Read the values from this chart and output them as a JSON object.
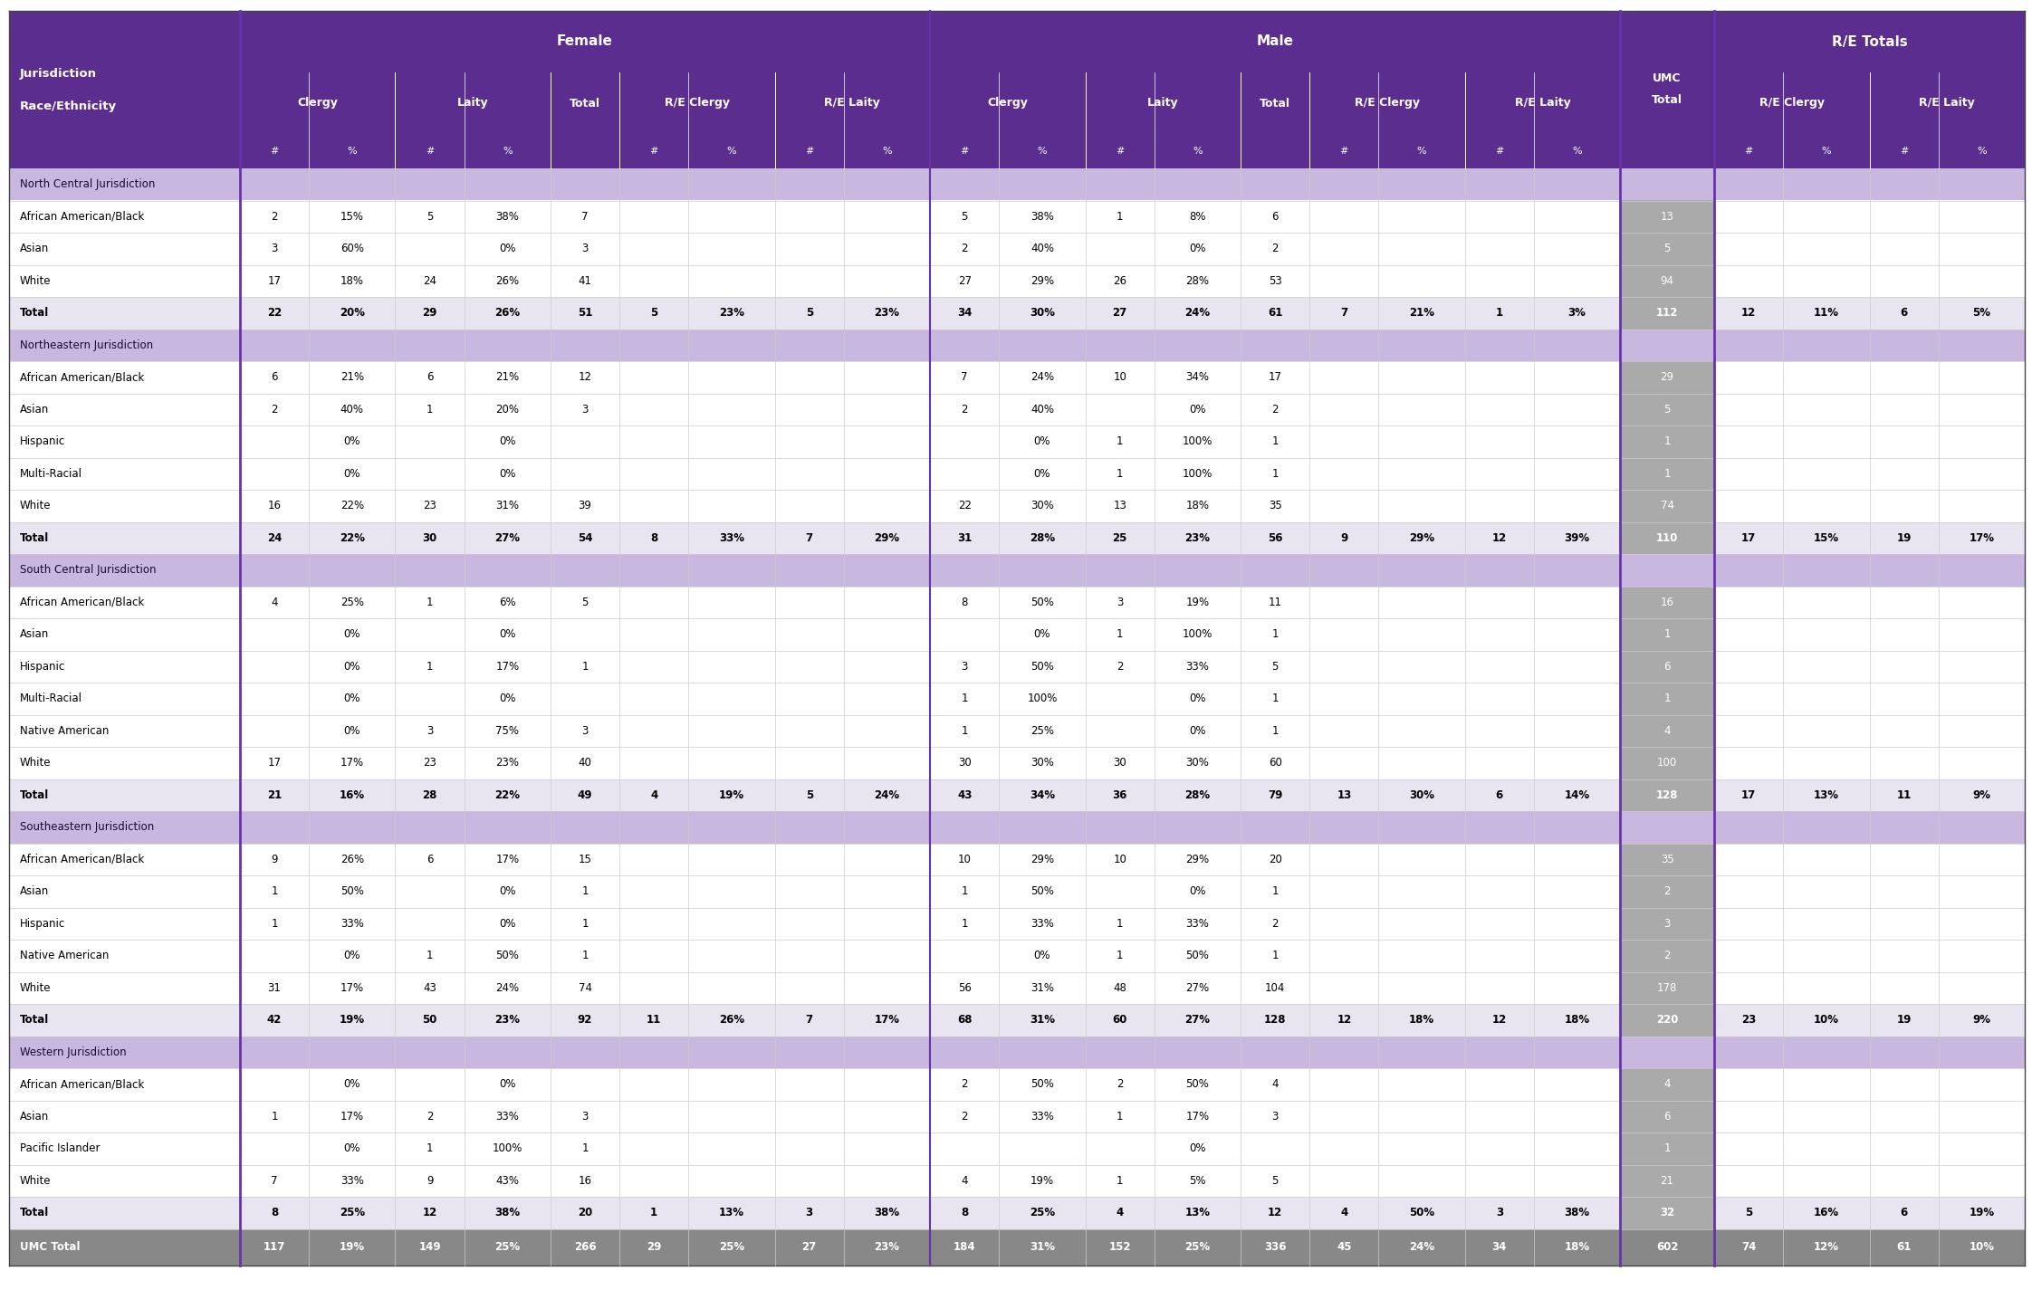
{
  "header_bg": "#5b2d8e",
  "header_text": "#ffffff",
  "jurisdiction_bg": "#c8b8e0",
  "total_bg": "#e8e4f0",
  "umc_total_bg": "#888888",
  "umc_total_text": "#ffffff",
  "umc_col_bg": "#aaaaaa",
  "umc_col_text": "#ffffff",
  "white_bg": "#ffffff",
  "row_line_color": "#cccccc",
  "col_separator_color": "#6633aa",
  "rows": [
    {
      "type": "jurisdiction",
      "label": "North Central Jurisdiction"
    },
    {
      "type": "data",
      "label": "African American/Black",
      "f_cl_n": "2",
      "f_cl_p": "15%",
      "f_la_n": "5",
      "f_la_p": "38%",
      "f_tot": "7",
      "f_re_cl_n": "",
      "f_re_cl_p": "",
      "f_re_la_n": "",
      "f_re_la_p": "",
      "m_cl_n": "5",
      "m_cl_p": "38%",
      "m_la_n": "1",
      "m_la_p": "8%",
      "m_tot": "6",
      "m_re_cl_n": "",
      "m_re_cl_p": "",
      "m_re_la_n": "",
      "m_re_la_p": "",
      "umc_tot": "13",
      "re_cl_n": "",
      "re_cl_p": "",
      "re_la_n": "",
      "re_la_p": ""
    },
    {
      "type": "data",
      "label": "Asian",
      "f_cl_n": "3",
      "f_cl_p": "60%",
      "f_la_n": "",
      "f_la_p": "0%",
      "f_tot": "3",
      "f_re_cl_n": "",
      "f_re_cl_p": "",
      "f_re_la_n": "",
      "f_re_la_p": "",
      "m_cl_n": "2",
      "m_cl_p": "40%",
      "m_la_n": "",
      "m_la_p": "0%",
      "m_tot": "2",
      "m_re_cl_n": "",
      "m_re_cl_p": "",
      "m_re_la_n": "",
      "m_re_la_p": "",
      "umc_tot": "5",
      "re_cl_n": "",
      "re_cl_p": "",
      "re_la_n": "",
      "re_la_p": ""
    },
    {
      "type": "data",
      "label": "White",
      "f_cl_n": "17",
      "f_cl_p": "18%",
      "f_la_n": "24",
      "f_la_p": "26%",
      "f_tot": "41",
      "f_re_cl_n": "",
      "f_re_cl_p": "",
      "f_re_la_n": "",
      "f_re_la_p": "",
      "m_cl_n": "27",
      "m_cl_p": "29%",
      "m_la_n": "26",
      "m_la_p": "28%",
      "m_tot": "53",
      "m_re_cl_n": "",
      "m_re_cl_p": "",
      "m_re_la_n": "",
      "m_re_la_p": "",
      "umc_tot": "94",
      "re_cl_n": "",
      "re_cl_p": "",
      "re_la_n": "",
      "re_la_p": ""
    },
    {
      "type": "total",
      "label": "Total",
      "f_cl_n": "22",
      "f_cl_p": "20%",
      "f_la_n": "29",
      "f_la_p": "26%",
      "f_tot": "51",
      "f_re_cl_n": "5",
      "f_re_cl_p": "23%",
      "f_re_la_n": "5",
      "f_re_la_p": "23%",
      "m_cl_n": "34",
      "m_cl_p": "30%",
      "m_la_n": "27",
      "m_la_p": "24%",
      "m_tot": "61",
      "m_re_cl_n": "7",
      "m_re_cl_p": "21%",
      "m_re_la_n": "1",
      "m_re_la_p": "3%",
      "umc_tot": "112",
      "re_cl_n": "12",
      "re_cl_p": "11%",
      "re_la_n": "6",
      "re_la_p": "5%"
    },
    {
      "type": "jurisdiction",
      "label": "Northeastern Jurisdiction"
    },
    {
      "type": "data",
      "label": "African American/Black",
      "f_cl_n": "6",
      "f_cl_p": "21%",
      "f_la_n": "6",
      "f_la_p": "21%",
      "f_tot": "12",
      "f_re_cl_n": "",
      "f_re_cl_p": "",
      "f_re_la_n": "",
      "f_re_la_p": "",
      "m_cl_n": "7",
      "m_cl_p": "24%",
      "m_la_n": "10",
      "m_la_p": "34%",
      "m_tot": "17",
      "m_re_cl_n": "",
      "m_re_cl_p": "",
      "m_re_la_n": "",
      "m_re_la_p": "",
      "umc_tot": "29",
      "re_cl_n": "",
      "re_cl_p": "",
      "re_la_n": "",
      "re_la_p": ""
    },
    {
      "type": "data",
      "label": "Asian",
      "f_cl_n": "2",
      "f_cl_p": "40%",
      "f_la_n": "1",
      "f_la_p": "20%",
      "f_tot": "3",
      "f_re_cl_n": "",
      "f_re_cl_p": "",
      "f_re_la_n": "",
      "f_re_la_p": "",
      "m_cl_n": "2",
      "m_cl_p": "40%",
      "m_la_n": "",
      "m_la_p": "0%",
      "m_tot": "2",
      "m_re_cl_n": "",
      "m_re_cl_p": "",
      "m_re_la_n": "",
      "m_re_la_p": "",
      "umc_tot": "5",
      "re_cl_n": "",
      "re_cl_p": "",
      "re_la_n": "",
      "re_la_p": ""
    },
    {
      "type": "data",
      "label": "Hispanic",
      "f_cl_n": "",
      "f_cl_p": "0%",
      "f_la_n": "",
      "f_la_p": "0%",
      "f_tot": "",
      "f_re_cl_n": "",
      "f_re_cl_p": "",
      "f_re_la_n": "",
      "f_re_la_p": "",
      "m_cl_n": "",
      "m_cl_p": "0%",
      "m_la_n": "1",
      "m_la_p": "100%",
      "m_tot": "1",
      "m_re_cl_n": "",
      "m_re_cl_p": "",
      "m_re_la_n": "",
      "m_re_la_p": "",
      "umc_tot": "1",
      "re_cl_n": "",
      "re_cl_p": "",
      "re_la_n": "",
      "re_la_p": ""
    },
    {
      "type": "data",
      "label": "Multi-Racial",
      "f_cl_n": "",
      "f_cl_p": "0%",
      "f_la_n": "",
      "f_la_p": "0%",
      "f_tot": "",
      "f_re_cl_n": "",
      "f_re_cl_p": "",
      "f_re_la_n": "",
      "f_re_la_p": "",
      "m_cl_n": "",
      "m_cl_p": "0%",
      "m_la_n": "1",
      "m_la_p": "100%",
      "m_tot": "1",
      "m_re_cl_n": "",
      "m_re_cl_p": "",
      "m_re_la_n": "",
      "m_re_la_p": "",
      "umc_tot": "1",
      "re_cl_n": "",
      "re_cl_p": "",
      "re_la_n": "",
      "re_la_p": ""
    },
    {
      "type": "data",
      "label": "White",
      "f_cl_n": "16",
      "f_cl_p": "22%",
      "f_la_n": "23",
      "f_la_p": "31%",
      "f_tot": "39",
      "f_re_cl_n": "",
      "f_re_cl_p": "",
      "f_re_la_n": "",
      "f_re_la_p": "",
      "m_cl_n": "22",
      "m_cl_p": "30%",
      "m_la_n": "13",
      "m_la_p": "18%",
      "m_tot": "35",
      "m_re_cl_n": "",
      "m_re_cl_p": "",
      "m_re_la_n": "",
      "m_re_la_p": "",
      "umc_tot": "74",
      "re_cl_n": "",
      "re_cl_p": "",
      "re_la_n": "",
      "re_la_p": ""
    },
    {
      "type": "total",
      "label": "Total",
      "f_cl_n": "24",
      "f_cl_p": "22%",
      "f_la_n": "30",
      "f_la_p": "27%",
      "f_tot": "54",
      "f_re_cl_n": "8",
      "f_re_cl_p": "33%",
      "f_re_la_n": "7",
      "f_re_la_p": "29%",
      "m_cl_n": "31",
      "m_cl_p": "28%",
      "m_la_n": "25",
      "m_la_p": "23%",
      "m_tot": "56",
      "m_re_cl_n": "9",
      "m_re_cl_p": "29%",
      "m_re_la_n": "12",
      "m_re_la_p": "39%",
      "umc_tot": "110",
      "re_cl_n": "17",
      "re_cl_p": "15%",
      "re_la_n": "19",
      "re_la_p": "17%"
    },
    {
      "type": "jurisdiction",
      "label": "South Central Jurisdiction"
    },
    {
      "type": "data",
      "label": "African American/Black",
      "f_cl_n": "4",
      "f_cl_p": "25%",
      "f_la_n": "1",
      "f_la_p": "6%",
      "f_tot": "5",
      "f_re_cl_n": "",
      "f_re_cl_p": "",
      "f_re_la_n": "",
      "f_re_la_p": "",
      "m_cl_n": "8",
      "m_cl_p": "50%",
      "m_la_n": "3",
      "m_la_p": "19%",
      "m_tot": "11",
      "m_re_cl_n": "",
      "m_re_cl_p": "",
      "m_re_la_n": "",
      "m_re_la_p": "",
      "umc_tot": "16",
      "re_cl_n": "",
      "re_cl_p": "",
      "re_la_n": "",
      "re_la_p": ""
    },
    {
      "type": "data",
      "label": "Asian",
      "f_cl_n": "",
      "f_cl_p": "0%",
      "f_la_n": "",
      "f_la_p": "0%",
      "f_tot": "",
      "f_re_cl_n": "",
      "f_re_cl_p": "",
      "f_re_la_n": "",
      "f_re_la_p": "",
      "m_cl_n": "",
      "m_cl_p": "0%",
      "m_la_n": "1",
      "m_la_p": "100%",
      "m_tot": "1",
      "m_re_cl_n": "",
      "m_re_cl_p": "",
      "m_re_la_n": "",
      "m_re_la_p": "",
      "umc_tot": "1",
      "re_cl_n": "",
      "re_cl_p": "",
      "re_la_n": "",
      "re_la_p": ""
    },
    {
      "type": "data",
      "label": "Hispanic",
      "f_cl_n": "",
      "f_cl_p": "0%",
      "f_la_n": "1",
      "f_la_p": "17%",
      "f_tot": "1",
      "f_re_cl_n": "",
      "f_re_cl_p": "",
      "f_re_la_n": "",
      "f_re_la_p": "",
      "m_cl_n": "3",
      "m_cl_p": "50%",
      "m_la_n": "2",
      "m_la_p": "33%",
      "m_tot": "5",
      "m_re_cl_n": "",
      "m_re_cl_p": "",
      "m_re_la_n": "",
      "m_re_la_p": "",
      "umc_tot": "6",
      "re_cl_n": "",
      "re_cl_p": "",
      "re_la_n": "",
      "re_la_p": ""
    },
    {
      "type": "data",
      "label": "Multi-Racial",
      "f_cl_n": "",
      "f_cl_p": "0%",
      "f_la_n": "",
      "f_la_p": "0%",
      "f_tot": "",
      "f_re_cl_n": "",
      "f_re_cl_p": "",
      "f_re_la_n": "",
      "f_re_la_p": "",
      "m_cl_n": "1",
      "m_cl_p": "100%",
      "m_la_n": "",
      "m_la_p": "0%",
      "m_tot": "1",
      "m_re_cl_n": "",
      "m_re_cl_p": "",
      "m_re_la_n": "",
      "m_re_la_p": "",
      "umc_tot": "1",
      "re_cl_n": "",
      "re_cl_p": "",
      "re_la_n": "",
      "re_la_p": ""
    },
    {
      "type": "data",
      "label": "Native American",
      "f_cl_n": "",
      "f_cl_p": "0%",
      "f_la_n": "3",
      "f_la_p": "75%",
      "f_tot": "3",
      "f_re_cl_n": "",
      "f_re_cl_p": "",
      "f_re_la_n": "",
      "f_re_la_p": "",
      "m_cl_n": "1",
      "m_cl_p": "25%",
      "m_la_n": "",
      "m_la_p": "0%",
      "m_tot": "1",
      "m_re_cl_n": "",
      "m_re_cl_p": "",
      "m_re_la_n": "",
      "m_re_la_p": "",
      "umc_tot": "4",
      "re_cl_n": "",
      "re_cl_p": "",
      "re_la_n": "",
      "re_la_p": ""
    },
    {
      "type": "data",
      "label": "White",
      "f_cl_n": "17",
      "f_cl_p": "17%",
      "f_la_n": "23",
      "f_la_p": "23%",
      "f_tot": "40",
      "f_re_cl_n": "",
      "f_re_cl_p": "",
      "f_re_la_n": "",
      "f_re_la_p": "",
      "m_cl_n": "30",
      "m_cl_p": "30%",
      "m_la_n": "30",
      "m_la_p": "30%",
      "m_tot": "60",
      "m_re_cl_n": "",
      "m_re_cl_p": "",
      "m_re_la_n": "",
      "m_re_la_p": "",
      "umc_tot": "100",
      "re_cl_n": "",
      "re_cl_p": "",
      "re_la_n": "",
      "re_la_p": ""
    },
    {
      "type": "total",
      "label": "Total",
      "f_cl_n": "21",
      "f_cl_p": "16%",
      "f_la_n": "28",
      "f_la_p": "22%",
      "f_tot": "49",
      "f_re_cl_n": "4",
      "f_re_cl_p": "19%",
      "f_re_la_n": "5",
      "f_re_la_p": "24%",
      "m_cl_n": "43",
      "m_cl_p": "34%",
      "m_la_n": "36",
      "m_la_p": "28%",
      "m_tot": "79",
      "m_re_cl_n": "13",
      "m_re_cl_p": "30%",
      "m_re_la_n": "6",
      "m_re_la_p": "14%",
      "umc_tot": "128",
      "re_cl_n": "17",
      "re_cl_p": "13%",
      "re_la_n": "11",
      "re_la_p": "9%"
    },
    {
      "type": "jurisdiction",
      "label": "Southeastern Jurisdiction"
    },
    {
      "type": "data",
      "label": "African American/Black",
      "f_cl_n": "9",
      "f_cl_p": "26%",
      "f_la_n": "6",
      "f_la_p": "17%",
      "f_tot": "15",
      "f_re_cl_n": "",
      "f_re_cl_p": "",
      "f_re_la_n": "",
      "f_re_la_p": "",
      "m_cl_n": "10",
      "m_cl_p": "29%",
      "m_la_n": "10",
      "m_la_p": "29%",
      "m_tot": "20",
      "m_re_cl_n": "",
      "m_re_cl_p": "",
      "m_re_la_n": "",
      "m_re_la_p": "",
      "umc_tot": "35",
      "re_cl_n": "",
      "re_cl_p": "",
      "re_la_n": "",
      "re_la_p": ""
    },
    {
      "type": "data",
      "label": "Asian",
      "f_cl_n": "1",
      "f_cl_p": "50%",
      "f_la_n": "",
      "f_la_p": "0%",
      "f_tot": "1",
      "f_re_cl_n": "",
      "f_re_cl_p": "",
      "f_re_la_n": "",
      "f_re_la_p": "",
      "m_cl_n": "1",
      "m_cl_p": "50%",
      "m_la_n": "",
      "m_la_p": "0%",
      "m_tot": "1",
      "m_re_cl_n": "",
      "m_re_cl_p": "",
      "m_re_la_n": "",
      "m_re_la_p": "",
      "umc_tot": "2",
      "re_cl_n": "",
      "re_cl_p": "",
      "re_la_n": "",
      "re_la_p": ""
    },
    {
      "type": "data",
      "label": "Hispanic",
      "f_cl_n": "1",
      "f_cl_p": "33%",
      "f_la_n": "",
      "f_la_p": "0%",
      "f_tot": "1",
      "f_re_cl_n": "",
      "f_re_cl_p": "",
      "f_re_la_n": "",
      "f_re_la_p": "",
      "m_cl_n": "1",
      "m_cl_p": "33%",
      "m_la_n": "1",
      "m_la_p": "33%",
      "m_tot": "2",
      "m_re_cl_n": "",
      "m_re_cl_p": "",
      "m_re_la_n": "",
      "m_re_la_p": "",
      "umc_tot": "3",
      "re_cl_n": "",
      "re_cl_p": "",
      "re_la_n": "",
      "re_la_p": ""
    },
    {
      "type": "data",
      "label": "Native American",
      "f_cl_n": "",
      "f_cl_p": "0%",
      "f_la_n": "1",
      "f_la_p": "50%",
      "f_tot": "1",
      "f_re_cl_n": "",
      "f_re_cl_p": "",
      "f_re_la_n": "",
      "f_re_la_p": "",
      "m_cl_n": "",
      "m_cl_p": "0%",
      "m_la_n": "1",
      "m_la_p": "50%",
      "m_tot": "1",
      "m_re_cl_n": "",
      "m_re_cl_p": "",
      "m_re_la_n": "",
      "m_re_la_p": "",
      "umc_tot": "2",
      "re_cl_n": "",
      "re_cl_p": "",
      "re_la_n": "",
      "re_la_p": ""
    },
    {
      "type": "data",
      "label": "White",
      "f_cl_n": "31",
      "f_cl_p": "17%",
      "f_la_n": "43",
      "f_la_p": "24%",
      "f_tot": "74",
      "f_re_cl_n": "",
      "f_re_cl_p": "",
      "f_re_la_n": "",
      "f_re_la_p": "",
      "m_cl_n": "56",
      "m_cl_p": "31%",
      "m_la_n": "48",
      "m_la_p": "27%",
      "m_tot": "104",
      "m_re_cl_n": "",
      "m_re_cl_p": "",
      "m_re_la_n": "",
      "m_re_la_p": "",
      "umc_tot": "178",
      "re_cl_n": "",
      "re_cl_p": "",
      "re_la_n": "",
      "re_la_p": ""
    },
    {
      "type": "total",
      "label": "Total",
      "f_cl_n": "42",
      "f_cl_p": "19%",
      "f_la_n": "50",
      "f_la_p": "23%",
      "f_tot": "92",
      "f_re_cl_n": "11",
      "f_re_cl_p": "26%",
      "f_re_la_n": "7",
      "f_re_la_p": "17%",
      "m_cl_n": "68",
      "m_cl_p": "31%",
      "m_la_n": "60",
      "m_la_p": "27%",
      "m_tot": "128",
      "m_re_cl_n": "12",
      "m_re_cl_p": "18%",
      "m_re_la_n": "12",
      "m_re_la_p": "18%",
      "umc_tot": "220",
      "re_cl_n": "23",
      "re_cl_p": "10%",
      "re_la_n": "19",
      "re_la_p": "9%"
    },
    {
      "type": "jurisdiction",
      "label": "Western Jurisdiction"
    },
    {
      "type": "data",
      "label": "African American/Black",
      "f_cl_n": "",
      "f_cl_p": "0%",
      "f_la_n": "",
      "f_la_p": "0%",
      "f_tot": "",
      "f_re_cl_n": "",
      "f_re_cl_p": "",
      "f_re_la_n": "",
      "f_re_la_p": "",
      "m_cl_n": "2",
      "m_cl_p": "50%",
      "m_la_n": "2",
      "m_la_p": "50%",
      "m_tot": "4",
      "m_re_cl_n": "",
      "m_re_cl_p": "",
      "m_re_la_n": "",
      "m_re_la_p": "",
      "umc_tot": "4",
      "re_cl_n": "",
      "re_cl_p": "",
      "re_la_n": "",
      "re_la_p": ""
    },
    {
      "type": "data",
      "label": "Asian",
      "f_cl_n": "1",
      "f_cl_p": "17%",
      "f_la_n": "2",
      "f_la_p": "33%",
      "f_tot": "3",
      "f_re_cl_n": "",
      "f_re_cl_p": "",
      "f_re_la_n": "",
      "f_re_la_p": "",
      "m_cl_n": "2",
      "m_cl_p": "33%",
      "m_la_n": "1",
      "m_la_p": "17%",
      "m_tot": "3",
      "m_re_cl_n": "",
      "m_re_cl_p": "",
      "m_re_la_n": "",
      "m_re_la_p": "",
      "umc_tot": "6",
      "re_cl_n": "",
      "re_cl_p": "",
      "re_la_n": "",
      "re_la_p": ""
    },
    {
      "type": "data",
      "label": "Pacific Islander",
      "f_cl_n": "",
      "f_cl_p": "0%",
      "f_la_n": "1",
      "f_la_p": "100%",
      "f_tot": "1",
      "f_re_cl_n": "",
      "f_re_cl_p": "",
      "f_re_la_n": "",
      "f_re_la_p": "",
      "m_cl_n": "",
      "m_cl_p": "",
      "m_la_n": "",
      "m_la_p": "0%",
      "m_tot": "",
      "m_re_cl_n": "",
      "m_re_cl_p": "",
      "m_re_la_n": "",
      "m_re_la_p": "",
      "umc_tot": "1",
      "re_cl_n": "",
      "re_cl_p": "",
      "re_la_n": "",
      "re_la_p": ""
    },
    {
      "type": "data",
      "label": "White",
      "f_cl_n": "7",
      "f_cl_p": "33%",
      "f_la_n": "9",
      "f_la_p": "43%",
      "f_tot": "16",
      "f_re_cl_n": "",
      "f_re_cl_p": "",
      "f_re_la_n": "",
      "f_re_la_p": "",
      "m_cl_n": "4",
      "m_cl_p": "19%",
      "m_la_n": "1",
      "m_la_p": "5%",
      "m_tot": "5",
      "m_re_cl_n": "",
      "m_re_cl_p": "",
      "m_re_la_n": "",
      "m_re_la_p": "",
      "umc_tot": "21",
      "re_cl_n": "",
      "re_cl_p": "",
      "re_la_n": "",
      "re_la_p": ""
    },
    {
      "type": "total",
      "label": "Total",
      "f_cl_n": "8",
      "f_cl_p": "25%",
      "f_la_n": "12",
      "f_la_p": "38%",
      "f_tot": "20",
      "f_re_cl_n": "1",
      "f_re_cl_p": "13%",
      "f_re_la_n": "3",
      "f_re_la_p": "38%",
      "m_cl_n": "8",
      "m_cl_p": "25%",
      "m_la_n": "4",
      "m_la_p": "13%",
      "m_tot": "12",
      "m_re_cl_n": "4",
      "m_re_cl_p": "50%",
      "m_re_la_n": "3",
      "m_re_la_p": "38%",
      "umc_tot": "32",
      "re_cl_n": "5",
      "re_cl_p": "16%",
      "re_la_n": "6",
      "re_la_p": "19%"
    },
    {
      "type": "umc_total",
      "label": "UMC Total",
      "f_cl_n": "117",
      "f_cl_p": "19%",
      "f_la_n": "149",
      "f_la_p": "25%",
      "f_tot": "266",
      "f_re_cl_n": "29",
      "f_re_cl_p": "25%",
      "f_re_la_n": "27",
      "f_re_la_p": "23%",
      "m_cl_n": "184",
      "m_cl_p": "31%",
      "m_la_n": "152",
      "m_la_p": "25%",
      "m_tot": "336",
      "m_re_cl_n": "45",
      "m_re_cl_p": "24%",
      "m_re_la_n": "34",
      "m_re_la_p": "18%",
      "umc_tot": "602",
      "re_cl_n": "74",
      "re_cl_p": "12%",
      "re_la_n": "61",
      "re_la_p": "10%"
    }
  ]
}
